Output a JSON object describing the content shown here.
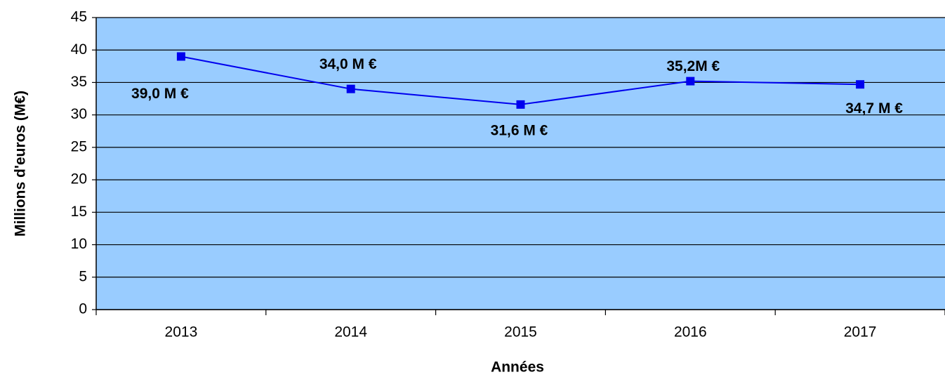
{
  "chart_data": {
    "type": "line",
    "categories": [
      "2013",
      "2014",
      "2015",
      "2016",
      "2017"
    ],
    "series": [
      {
        "name": "Millions d'euros",
        "color": "#0000ee",
        "values": [
          39.0,
          34.0,
          31.6,
          35.2,
          34.7
        ],
        "value_labels": [
          "39,0 M €",
          "34,0 M €",
          "31,6 M €",
          "35,2M €",
          "34,7 M €"
        ]
      }
    ],
    "y_label": "Millions d'euros (M€)",
    "x_label": "Années",
    "ylim": [
      0,
      45
    ],
    "yticks": [
      0,
      5,
      10,
      15,
      20,
      25,
      30,
      35,
      40,
      45
    ],
    "grid": true,
    "plot_background": "#99ccff"
  }
}
